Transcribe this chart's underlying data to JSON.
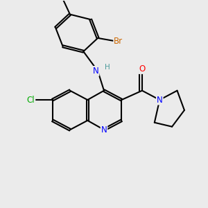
{
  "bg_color": "#ebebeb",
  "bond_color": "#000000",
  "atom_colors": {
    "N": "#0000ff",
    "O": "#ff0000",
    "Cl": "#00aa00",
    "Br": "#cc6600",
    "C": "#000000",
    "H": "#4a9a9a"
  },
  "font_size": 8.5,
  "line_width": 1.5,
  "double_sep": 0.1
}
